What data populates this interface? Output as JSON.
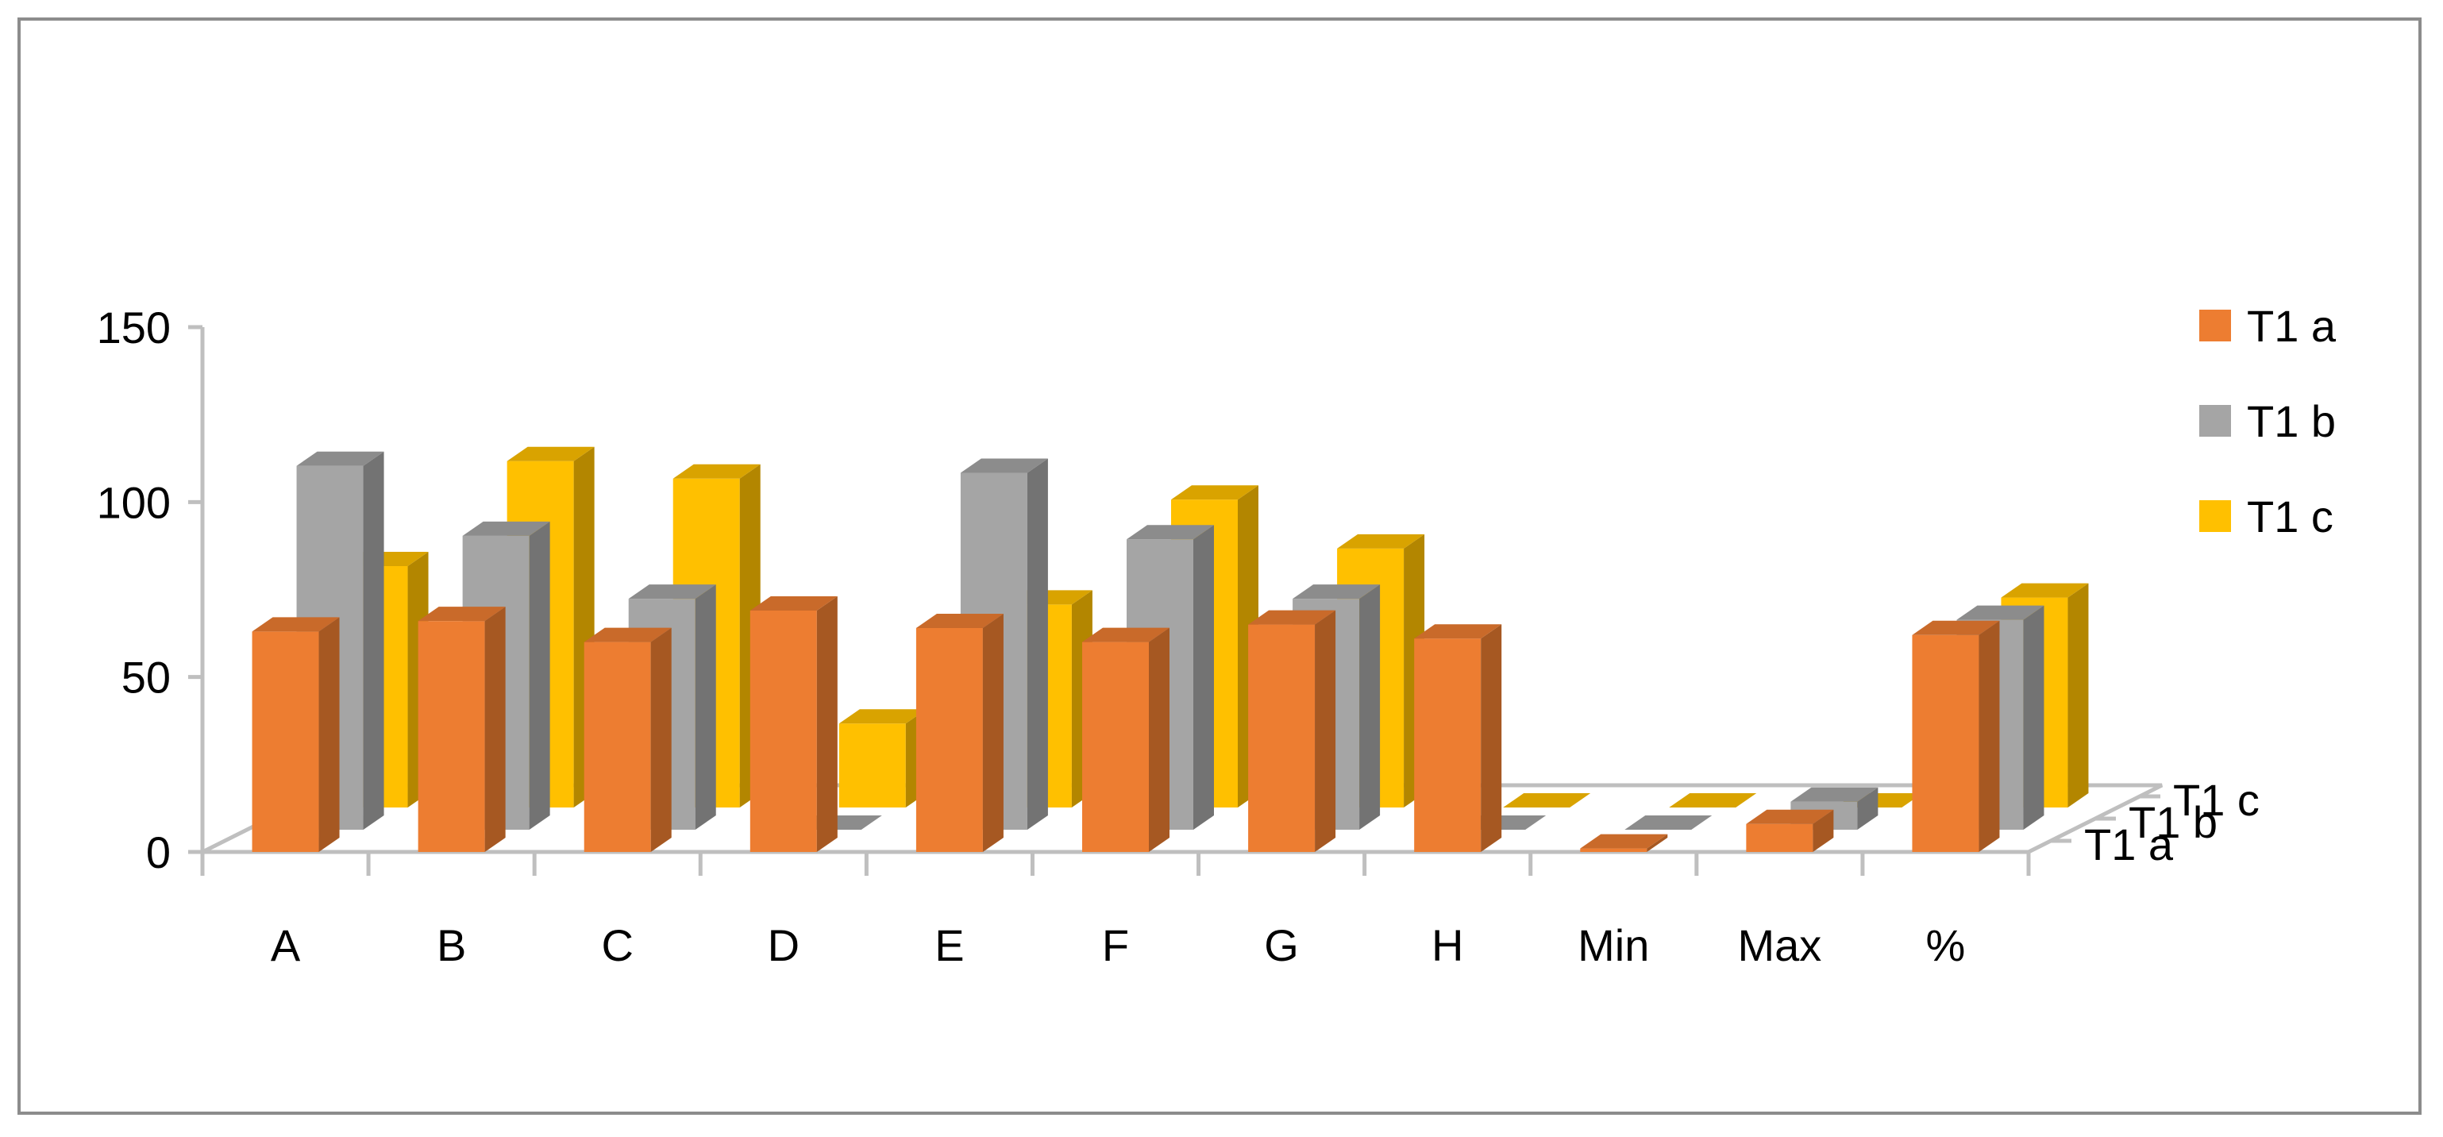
{
  "chart_data": {
    "type": "bar",
    "subtype": "3d-column",
    "title": "",
    "xlabel": "",
    "ylabel": "",
    "ylim": [
      0,
      150
    ],
    "yticks": [
      "0",
      "50",
      "100",
      "150"
    ],
    "categories": [
      "A",
      "B",
      "C",
      "D",
      "E",
      "F",
      "G",
      "H",
      "Min",
      "Max",
      "%"
    ],
    "series": [
      {
        "name": "T1 a",
        "color": "#ED7D31",
        "values": [
          63,
          66,
          60,
          69,
          64,
          60,
          65,
          61,
          1,
          8,
          62
        ]
      },
      {
        "name": "T1 b",
        "color": "#A5A5A5",
        "values": [
          104,
          84,
          66,
          0,
          102,
          83,
          66,
          0,
          0,
          8,
          60
        ]
      },
      {
        "name": "T1 c",
        "color": "#FFC000",
        "values": [
          69,
          99,
          94,
          24,
          58,
          88,
          74,
          0,
          0,
          0,
          60
        ]
      }
    ],
    "legend": {
      "position": "right",
      "entries": [
        "T1 a",
        "T1 b",
        "T1 c"
      ]
    },
    "depth_labels": [
      "T1 a",
      "T1 b",
      "T1 c"
    ],
    "grid": false
  }
}
